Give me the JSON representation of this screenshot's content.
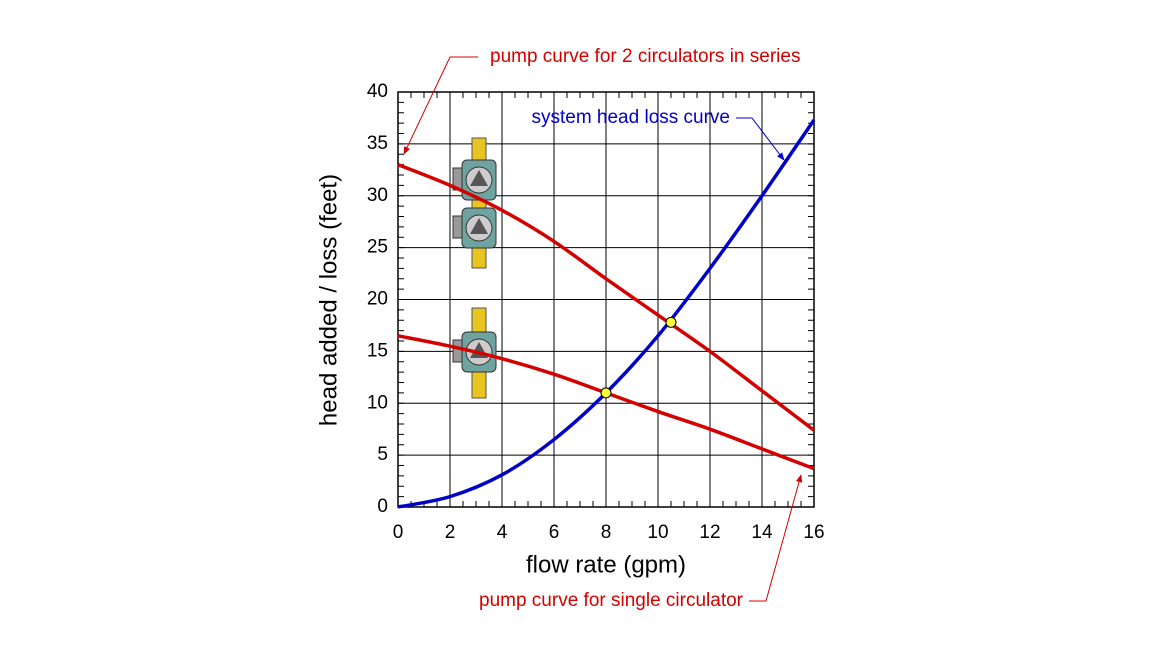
{
  "chart_data": {
    "type": "line",
    "x": [
      0,
      2,
      4,
      6,
      8,
      10,
      12,
      14,
      16
    ],
    "series": [
      {
        "name": "pump curve for 2 circulators in series",
        "color": "#d40000",
        "values": [
          33,
          31,
          28.6,
          25.6,
          22,
          18.5,
          15,
          11.2,
          7.4
        ]
      },
      {
        "name": "pump curve for single circulator",
        "color": "#d40000",
        "values": [
          16.5,
          15.5,
          14.3,
          12.8,
          11,
          9.2,
          7.5,
          5.6,
          3.7
        ]
      },
      {
        "name": "system head loss curve",
        "color": "#0000c8",
        "values": [
          0,
          1,
          3.1,
          6.5,
          11,
          16.5,
          23,
          30,
          37.3
        ]
      }
    ],
    "points": {
      "color": "#ffff33",
      "x": [
        8,
        10.5
      ],
      "y": [
        11,
        17.8
      ]
    },
    "xlabel": "flow rate (gpm)",
    "ylabel": "head added / loss (feet)",
    "xlim": [
      0,
      16
    ],
    "xticks": [
      0,
      2,
      4,
      6,
      8,
      10,
      12,
      14,
      16
    ],
    "ylim": [
      0,
      40
    ],
    "yticks": [
      0,
      5,
      10,
      15,
      20,
      25,
      30,
      35,
      40
    ],
    "grid": true
  }
}
